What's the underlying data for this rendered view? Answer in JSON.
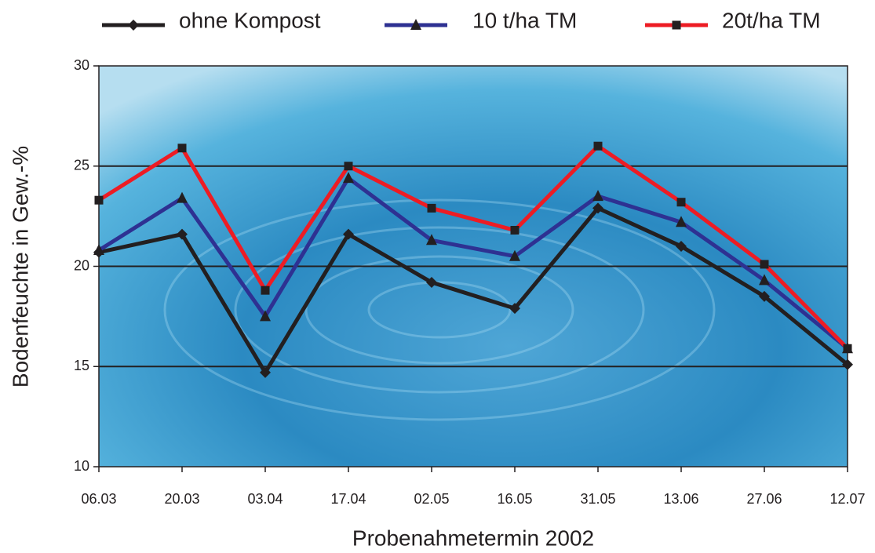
{
  "chart_data": {
    "type": "line",
    "x_label": "Probenahmetermin 2002",
    "y_label": "Bodenfeuchte in Gew.-%",
    "categories": [
      "06.03",
      "20.03",
      "03.04",
      "17.04",
      "02.05",
      "16.05",
      "31.05",
      "13.06",
      "27.06",
      "12.07"
    ],
    "series": [
      {
        "name": "ohne Kompost",
        "color": "#231f20",
        "marker": "diamond",
        "values": [
          20.7,
          21.6,
          14.7,
          21.6,
          19.2,
          17.9,
          22.9,
          21.0,
          18.5,
          15.1
        ]
      },
      {
        "name": "10 t/ha TM",
        "color": "#2e3192",
        "marker": "triangle",
        "values": [
          20.8,
          23.4,
          17.5,
          24.4,
          21.3,
          20.5,
          23.5,
          22.2,
          19.3,
          15.9
        ]
      },
      {
        "name": "20t/ha TM",
        "color": "#ed1c24",
        "marker": "square",
        "values": [
          23.3,
          25.9,
          18.8,
          25.0,
          22.9,
          21.8,
          26.0,
          23.2,
          20.1,
          15.9
        ]
      }
    ],
    "ylim": [
      10,
      30
    ],
    "yticks": [
      10,
      15,
      20,
      25,
      30
    ],
    "grid": true,
    "legend": "top"
  }
}
